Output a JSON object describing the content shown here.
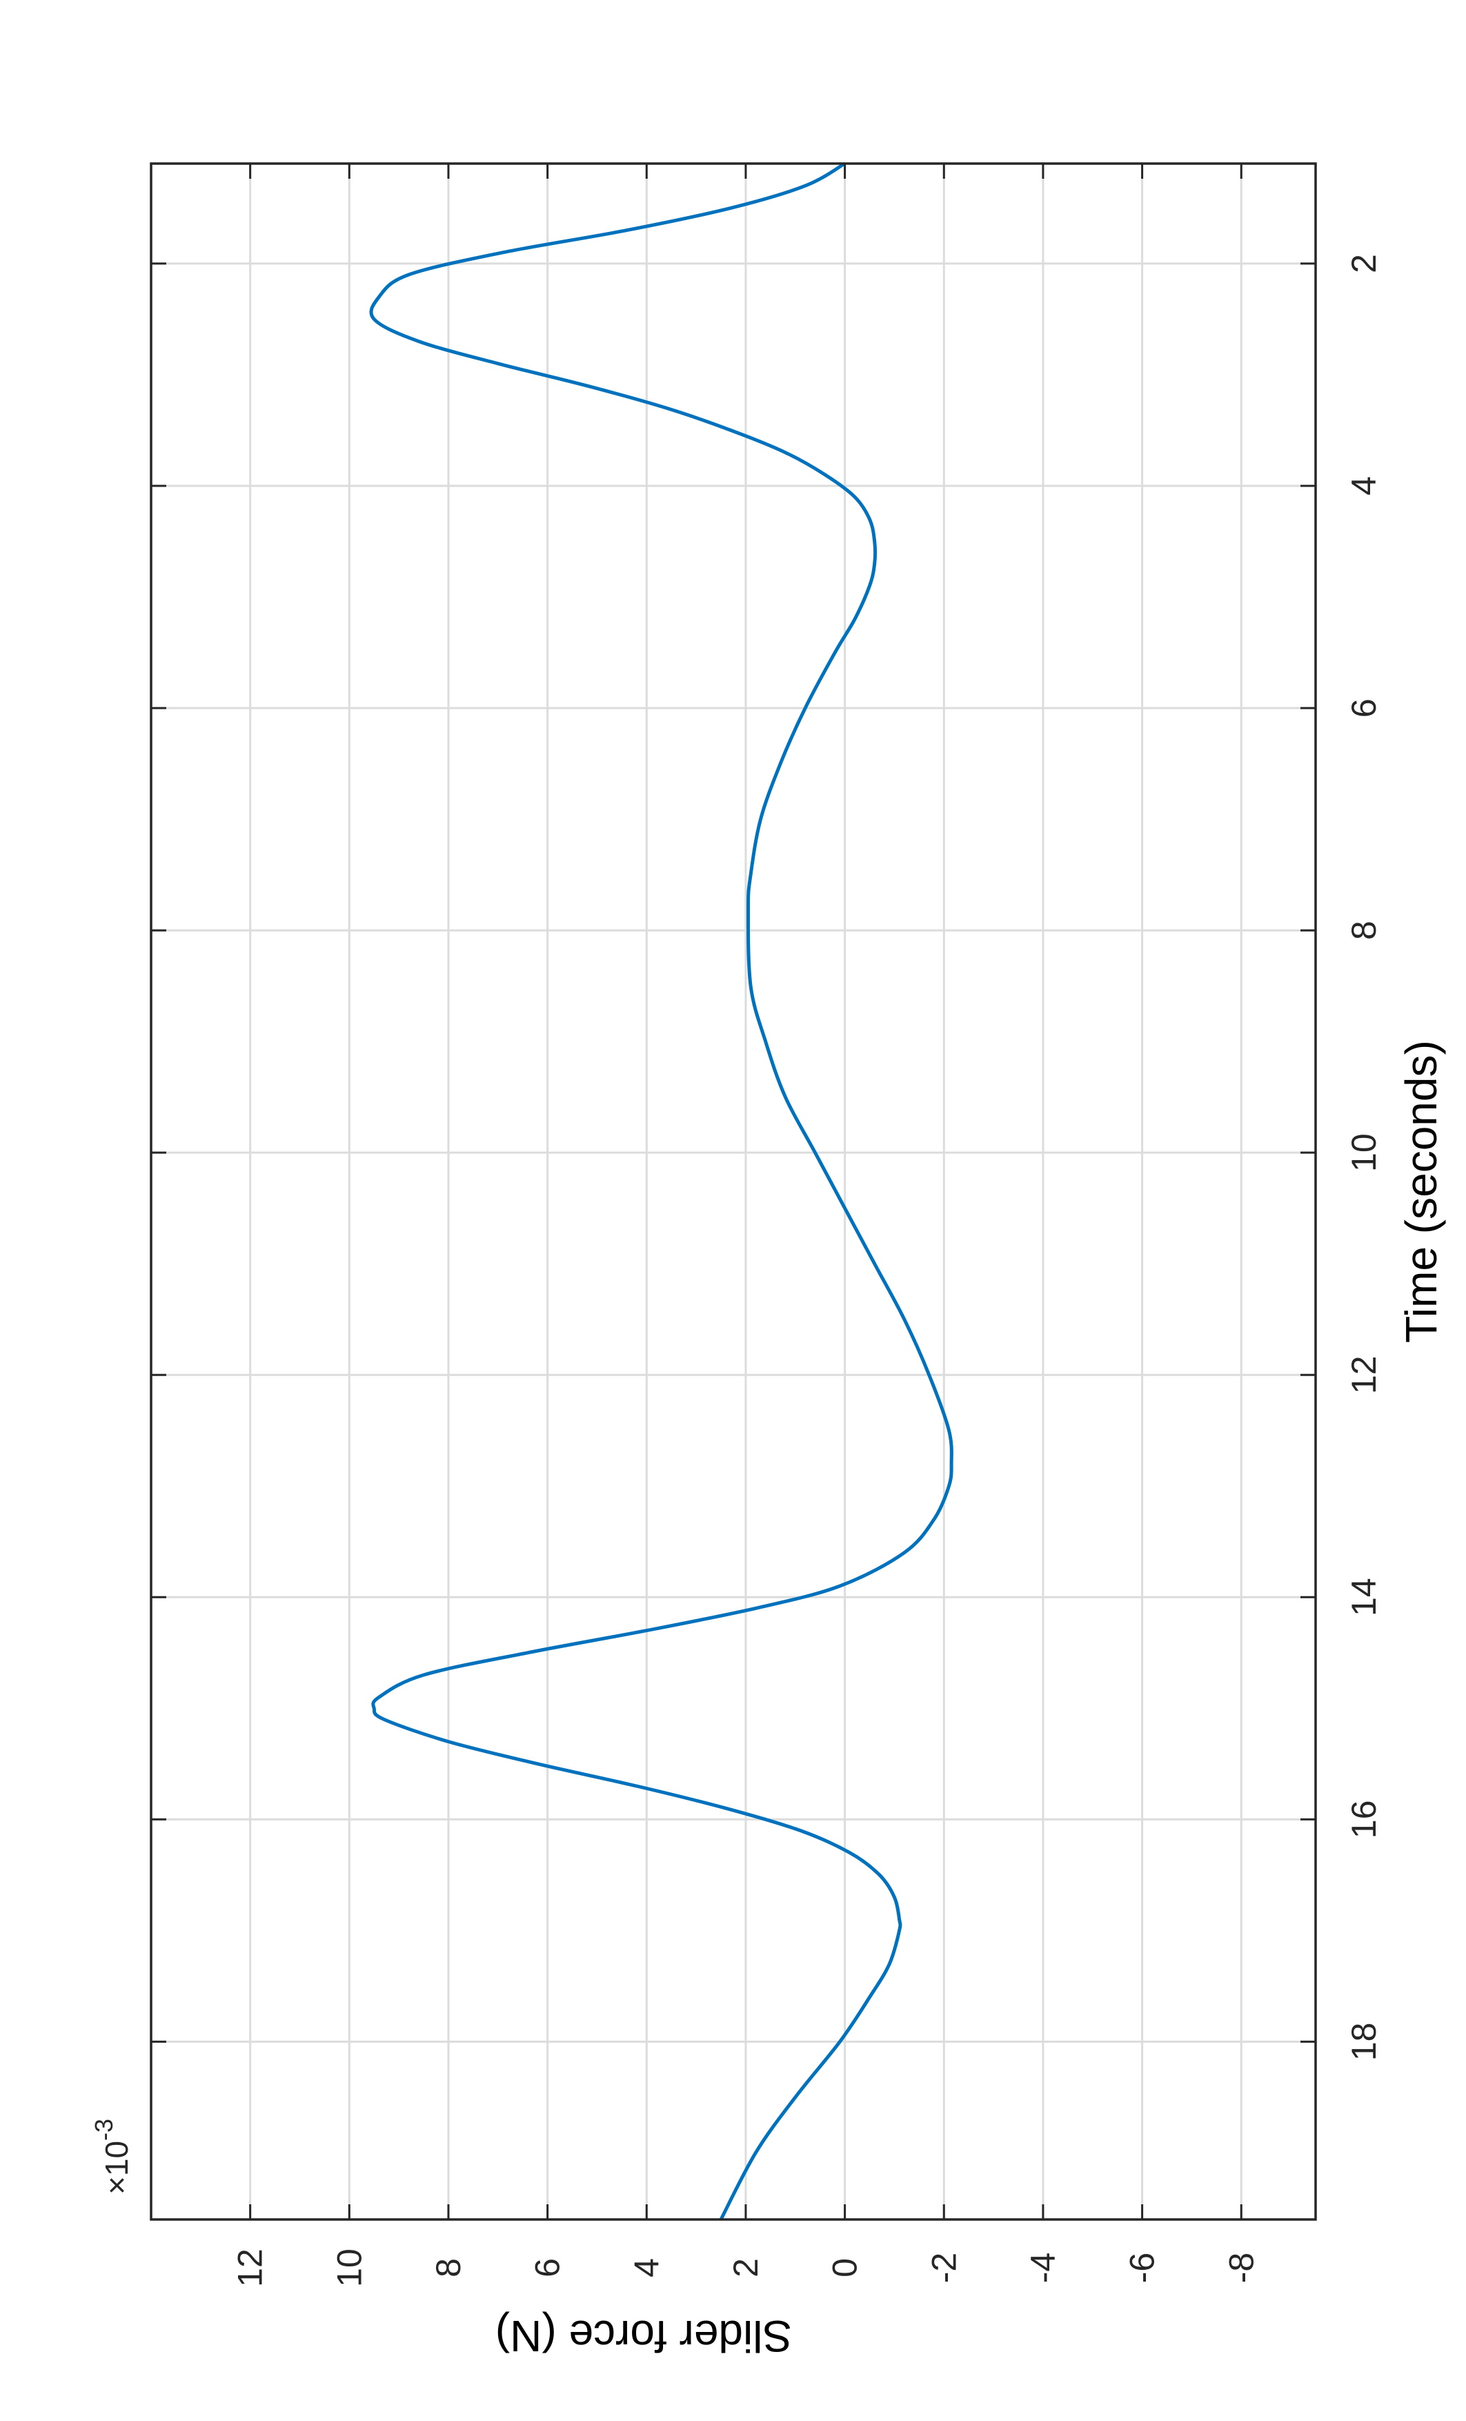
{
  "chart_data": {
    "type": "line",
    "orientation": "rotated-90-clockwise",
    "xlabel": "Time (seconds)",
    "ylabel": "Slider force (N)",
    "y_exponent_label": "×10",
    "y_exponent_power": "-3",
    "xlim": [
      1.1,
      19.6
    ],
    "ylim": [
      -9.5,
      14
    ],
    "xticks": [
      2,
      4,
      6,
      8,
      10,
      12,
      14,
      16,
      18
    ],
    "yticks": [
      12,
      10,
      8,
      6,
      4,
      2,
      0,
      -2,
      -4,
      -6,
      -8
    ],
    "grid": true,
    "line_color": "#0072BD",
    "series": [
      {
        "x": [
          1.1,
          1.3,
          1.5,
          1.7,
          1.9,
          2.1,
          2.3,
          2.5,
          2.7,
          2.9,
          3.1,
          3.3,
          3.5,
          3.7,
          3.9,
          4.1,
          4.3,
          4.5,
          4.7,
          4.9,
          5.2,
          5.5,
          6.0,
          6.5,
          7.0,
          7.5,
          7.8,
          8.5,
          9.0,
          9.5,
          10.0,
          10.5,
          11.0,
          11.5,
          12.0,
          12.5,
          12.8,
          13.0,
          13.3,
          13.6,
          13.9,
          14.1,
          14.3,
          14.5,
          14.7,
          14.9,
          15.0,
          15.1,
          15.3,
          15.5,
          15.7,
          15.9,
          16.1,
          16.3,
          16.5,
          16.7,
          16.9,
          17.0,
          17.3,
          17.6,
          18.0,
          18.5,
          19.0,
          19.6
        ],
        "y": [
          0.0,
          0.8,
          2.3,
          4.4,
          6.9,
          8.8,
          9.4,
          9.5,
          8.6,
          7.0,
          5.2,
          3.6,
          2.3,
          1.2,
          0.4,
          -0.2,
          -0.5,
          -0.6,
          -0.6,
          -0.5,
          -0.2,
          0.2,
          0.8,
          1.3,
          1.7,
          1.9,
          1.95,
          1.9,
          1.6,
          1.2,
          0.6,
          0.0,
          -0.6,
          -1.2,
          -1.7,
          -2.1,
          -2.15,
          -2.1,
          -1.8,
          -1.2,
          0.1,
          1.8,
          4.0,
          6.4,
          8.5,
          9.4,
          9.5,
          9.3,
          8.0,
          6.2,
          4.2,
          2.4,
          0.9,
          -0.1,
          -0.7,
          -1.0,
          -1.1,
          -1.1,
          -0.9,
          -0.5,
          0.1,
          1.0,
          1.8,
          2.5
        ]
      }
    ]
  }
}
